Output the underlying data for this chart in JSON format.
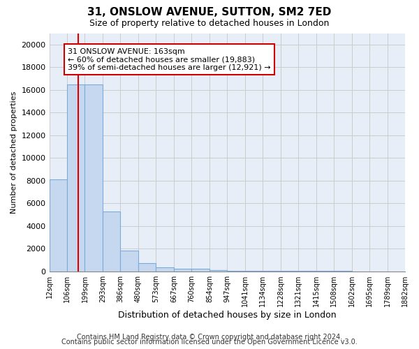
{
  "title1": "31, ONSLOW AVENUE, SUTTON, SM2 7ED",
  "title2": "Size of property relative to detached houses in London",
  "xlabel": "Distribution of detached houses by size in London",
  "ylabel": "Number of detached properties",
  "footer1": "Contains HM Land Registry data © Crown copyright and database right 2024.",
  "footer2": "Contains public sector information licensed under the Open Government Licence v3.0.",
  "bin_edges": [
    12,
    106,
    199,
    293,
    386,
    480,
    573,
    667,
    760,
    854,
    947,
    1041,
    1134,
    1228,
    1321,
    1415,
    1508,
    1602,
    1695,
    1789,
    1882
  ],
  "bar_heights": [
    8100,
    16500,
    16500,
    5300,
    1800,
    700,
    350,
    250,
    200,
    100,
    60,
    40,
    30,
    20,
    15,
    10,
    8,
    5,
    4,
    3
  ],
  "bar_color": "#c5d8f0",
  "bar_edge_color": "#7aabda",
  "red_line_x": 163,
  "red_line_color": "#dd0000",
  "ann_line1": "31 ONSLOW AVENUE: 163sqm",
  "ann_line2": "← 60% of detached houses are smaller (19,883)",
  "ann_line3": "39% of semi-detached houses are larger (12,921) →",
  "annotation_box_color": "#ffffff",
  "annotation_box_edge": "#cc0000",
  "ylim": [
    0,
    21000
  ],
  "yticks": [
    0,
    2000,
    4000,
    6000,
    8000,
    10000,
    12000,
    14000,
    16000,
    18000,
    20000
  ],
  "tick_labels": [
    "12sqm",
    "106sqm",
    "199sqm",
    "293sqm",
    "386sqm",
    "480sqm",
    "573sqm",
    "667sqm",
    "760sqm",
    "854sqm",
    "947sqm",
    "1041sqm",
    "1134sqm",
    "1228sqm",
    "1321sqm",
    "1415sqm",
    "1508sqm",
    "1602sqm",
    "1695sqm",
    "1789sqm",
    "1882sqm"
  ],
  "grid_color": "#cccccc",
  "bg_color": "#e8eef8",
  "title1_fontsize": 11,
  "title2_fontsize": 9,
  "xlabel_fontsize": 9,
  "ylabel_fontsize": 8,
  "tick_fontsize": 7,
  "ytick_fontsize": 8,
  "annotation_fontsize": 8,
  "footer_fontsize": 7
}
